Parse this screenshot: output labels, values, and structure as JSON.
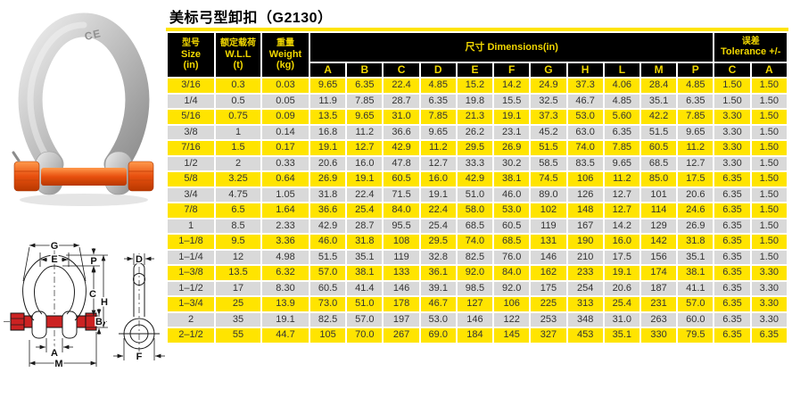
{
  "page": {
    "title": "美标弓型卸扣（G2130）"
  },
  "product_photo": {
    "ce_mark": "CE"
  },
  "diagram": {
    "labels": {
      "G": "G",
      "E": "E",
      "P": "P",
      "C": "C",
      "H": "H",
      "B": "B",
      "A": "A",
      "M": "M",
      "D": "D",
      "F": "F"
    }
  },
  "table": {
    "header": {
      "size_col": {
        "lines": [
          "型号",
          "Size",
          "(in)"
        ]
      },
      "wll_col": {
        "lines": [
          "额定载荷",
          "W.L.L",
          "(t)"
        ]
      },
      "weight_col": {
        "lines": [
          "重量",
          "Weight",
          "(kg)"
        ]
      },
      "dimensions": {
        "label": "尺寸  Dimensions(in)",
        "columns": [
          "A",
          "B",
          "C",
          "D",
          "E",
          "F",
          "G",
          "H",
          "L",
          "M",
          "P"
        ]
      },
      "tolerance": {
        "lines": [
          "误差",
          "Tolerance +/-"
        ],
        "columns": [
          "C",
          "A"
        ]
      }
    },
    "rows": [
      [
        "3/16",
        "0.3",
        "0.03",
        "9.65",
        "6.35",
        "22.4",
        "4.85",
        "15.2",
        "14.2",
        "24.9",
        "37.3",
        "4.06",
        "28.4",
        "4.85",
        "1.50",
        "1.50"
      ],
      [
        "1/4",
        "0.5",
        "0.05",
        "11.9",
        "7.85",
        "28.7",
        "6.35",
        "19.8",
        "15.5",
        "32.5",
        "46.7",
        "4.85",
        "35.1",
        "6.35",
        "1.50",
        "1.50"
      ],
      [
        "5/16",
        "0.75",
        "0.09",
        "13.5",
        "9.65",
        "31.0",
        "7.85",
        "21.3",
        "19.1",
        "37.3",
        "53.0",
        "5.60",
        "42.2",
        "7.85",
        "3.30",
        "1.50"
      ],
      [
        "3/8",
        "1",
        "0.14",
        "16.8",
        "11.2",
        "36.6",
        "9.65",
        "26.2",
        "23.1",
        "45.2",
        "63.0",
        "6.35",
        "51.5",
        "9.65",
        "3.30",
        "1.50"
      ],
      [
        "7/16",
        "1.5",
        "0.17",
        "19.1",
        "12.7",
        "42.9",
        "11.2",
        "29.5",
        "26.9",
        "51.5",
        "74.0",
        "7.85",
        "60.5",
        "11.2",
        "3.30",
        "1.50"
      ],
      [
        "1/2",
        "2",
        "0.33",
        "20.6",
        "16.0",
        "47.8",
        "12.7",
        "33.3",
        "30.2",
        "58.5",
        "83.5",
        "9.65",
        "68.5",
        "12.7",
        "3.30",
        "1.50"
      ],
      [
        "5/8",
        "3.25",
        "0.64",
        "26.9",
        "19.1",
        "60.5",
        "16.0",
        "42.9",
        "38.1",
        "74.5",
        "106",
        "11.2",
        "85.0",
        "17.5",
        "6.35",
        "1.50"
      ],
      [
        "3/4",
        "4.75",
        "1.05",
        "31.8",
        "22.4",
        "71.5",
        "19.1",
        "51.0",
        "46.0",
        "89.0",
        "126",
        "12.7",
        "101",
        "20.6",
        "6.35",
        "1.50"
      ],
      [
        "7/8",
        "6.5",
        "1.64",
        "36.6",
        "25.4",
        "84.0",
        "22.4",
        "58.0",
        "53.0",
        "102",
        "148",
        "12.7",
        "114",
        "24.6",
        "6.35",
        "1.50"
      ],
      [
        "1",
        "8.5",
        "2.33",
        "42.9",
        "28.7",
        "95.5",
        "25.4",
        "68.5",
        "60.5",
        "119",
        "167",
        "14.2",
        "129",
        "26.9",
        "6.35",
        "1.50"
      ],
      [
        "1–1/8",
        "9.5",
        "3.36",
        "46.0",
        "31.8",
        "108",
        "29.5",
        "74.0",
        "68.5",
        "131",
        "190",
        "16.0",
        "142",
        "31.8",
        "6.35",
        "1.50"
      ],
      [
        "1–1/4",
        "12",
        "4.98",
        "51.5",
        "35.1",
        "119",
        "32.8",
        "82.5",
        "76.0",
        "146",
        "210",
        "17.5",
        "156",
        "35.1",
        "6.35",
        "1.50"
      ],
      [
        "1–3/8",
        "13.5",
        "6.32",
        "57.0",
        "38.1",
        "133",
        "36.1",
        "92.0",
        "84.0",
        "162",
        "233",
        "19.1",
        "174",
        "38.1",
        "6.35",
        "3.30"
      ],
      [
        "1–1/2",
        "17",
        "8.30",
        "60.5",
        "41.4",
        "146",
        "39.1",
        "98.5",
        "92.0",
        "175",
        "254",
        "20.6",
        "187",
        "41.1",
        "6.35",
        "3.30"
      ],
      [
        "1–3/4",
        "25",
        "13.9",
        "73.0",
        "51.0",
        "178",
        "46.7",
        "127",
        "106",
        "225",
        "313",
        "25.4",
        "231",
        "57.0",
        "6.35",
        "3.30"
      ],
      [
        "2",
        "35",
        "19.1",
        "82.5",
        "57.0",
        "197",
        "53.0",
        "146",
        "122",
        "253",
        "348",
        "31.0",
        "263",
        "60.0",
        "6.35",
        "3.30"
      ],
      [
        "2–1/2",
        "55",
        "44.7",
        "105",
        "70.0",
        "267",
        "69.0",
        "184",
        "145",
        "327",
        "453",
        "35.1",
        "330",
        "79.5",
        "6.35",
        "6.35"
      ]
    ]
  },
  "colors": {
    "row_yellow": "#ffe400",
    "row_gray": "#d9d9d9",
    "header_bg": "#000000",
    "header_text": "#f2d800",
    "pin_orange": "#e8500f",
    "diagram_pin_red": "#cc2222"
  }
}
